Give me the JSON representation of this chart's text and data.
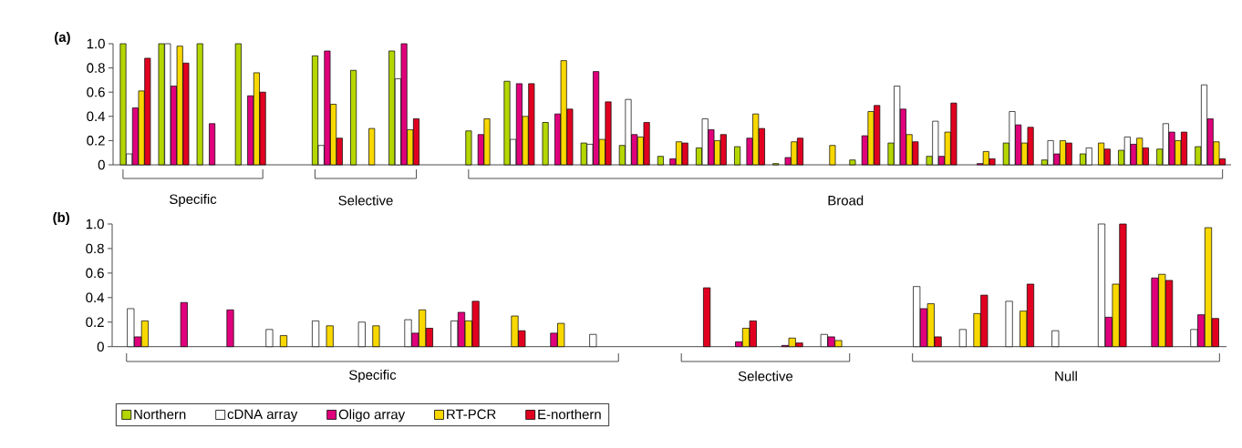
{
  "chart_data": [
    {
      "type": "bar",
      "title": "(a)",
      "legend": "bottom",
      "ylim": [
        0,
        1
      ],
      "yticks": [
        0,
        0.2,
        0.4,
        0.6,
        0.8,
        {
          "value": 1,
          "label": "1.0"
        }
      ],
      "annotations": [
        "Specific",
        "Selective",
        "Broad"
      ],
      "categories": [
        null,
        null,
        null,
        null,
        null,
        null,
        null,
        null,
        null,
        null,
        null,
        null,
        null,
        null,
        null,
        null,
        null,
        null,
        null,
        null,
        null,
        null,
        null,
        null,
        null,
        null,
        null,
        null,
        null
      ],
      "series": [
        {
          "name": "Northern",
          "color": "#b5d600",
          "values": [
            1.0,
            1.0,
            1.0,
            1.0,
            null,
            0.9,
            0.78,
            0.94,
            null,
            0.28,
            0.69,
            0.35,
            0.18,
            0.16,
            0.07,
            0.14,
            0.15,
            0.01,
            null,
            0.04,
            0.18,
            0.07,
            null,
            0.18,
            0.04,
            0.09,
            0.12,
            0.13,
            0.15
          ]
        },
        {
          "name": "cDNA array",
          "color": "#ffffff",
          "values": [
            0.09,
            1.0,
            null,
            null,
            null,
            0.16,
            null,
            0.71,
            null,
            null,
            0.21,
            null,
            0.17,
            0.54,
            null,
            0.38,
            null,
            null,
            null,
            null,
            0.65,
            0.36,
            null,
            0.44,
            0.2,
            0.14,
            0.23,
            0.34,
            0.66
          ]
        },
        {
          "name": "Oligo array",
          "color": "#e0007b",
          "values": [
            0.47,
            0.65,
            0.34,
            0.57,
            null,
            0.94,
            null,
            1.0,
            null,
            0.25,
            0.67,
            0.42,
            0.77,
            0.25,
            0.05,
            0.29,
            0.22,
            0.06,
            null,
            0.24,
            0.46,
            0.07,
            0.01,
            0.33,
            0.09,
            null,
            0.17,
            0.27,
            0.38
          ]
        },
        {
          "name": "RT-PCR",
          "color": "#f9d800",
          "values": [
            0.61,
            0.98,
            null,
            0.76,
            null,
            0.5,
            0.3,
            0.29,
            null,
            0.38,
            0.4,
            0.86,
            0.21,
            0.23,
            0.19,
            0.2,
            0.42,
            0.19,
            0.16,
            0.44,
            0.25,
            0.27,
            0.11,
            0.18,
            0.2,
            0.18,
            0.22,
            0.2,
            0.19
          ]
        },
        {
          "name": "E-northern",
          "color": "#e10020",
          "values": [
            0.88,
            0.84,
            null,
            0.6,
            null,
            0.22,
            null,
            0.38,
            null,
            null,
            0.67,
            0.46,
            0.52,
            0.35,
            0.18,
            0.25,
            0.3,
            0.22,
            null,
            0.49,
            0.19,
            0.51,
            0.05,
            0.31,
            0.18,
            0.13,
            0.14,
            0.27,
            0.05
          ]
        }
      ]
    },
    {
      "type": "bar",
      "title": "(b)",
      "ylim": [
        0,
        1
      ],
      "yticks": [
        0,
        0.2,
        0.4,
        0.6,
        0.8,
        {
          "value": 1,
          "label": "1.0"
        }
      ],
      "annotations": [
        "Specific",
        "Selective",
        "Null"
      ],
      "categories": [
        null,
        null,
        null,
        null,
        null,
        null,
        null,
        null,
        null,
        null,
        null,
        null,
        null,
        null,
        null,
        null,
        null,
        null,
        null,
        null,
        null,
        null,
        null,
        null
      ],
      "series": [
        {
          "color": "#ffffff",
          "values": [
            0.31,
            null,
            null,
            0.14,
            0.21,
            0.2,
            0.22,
            0.21,
            null,
            null,
            0.1,
            null,
            null,
            null,
            null,
            0.1,
            null,
            0.49,
            0.14,
            0.37,
            0.13,
            1.0,
            null,
            0.14
          ]
        },
        {
          "color": "#e0007b",
          "values": [
            0.08,
            0.36,
            0.3,
            null,
            null,
            null,
            0.11,
            0.28,
            null,
            0.11,
            null,
            null,
            null,
            0.04,
            0.01,
            0.08,
            null,
            0.31,
            null,
            null,
            null,
            0.24,
            0.56,
            0.26
          ]
        },
        {
          "color": "#f9d800",
          "values": [
            0.21,
            null,
            null,
            0.09,
            0.17,
            0.17,
            0.3,
            0.21,
            0.25,
            0.19,
            null,
            null,
            null,
            0.15,
            0.07,
            0.05,
            null,
            0.35,
            0.27,
            0.29,
            null,
            0.51,
            0.59,
            0.97
          ]
        },
        {
          "color": "#e10020",
          "values": [
            null,
            null,
            null,
            null,
            null,
            null,
            0.15,
            0.37,
            0.13,
            null,
            null,
            null,
            0.48,
            0.21,
            0.03,
            null,
            null,
            0.08,
            0.42,
            0.51,
            null,
            1.0,
            0.54,
            0.23
          ]
        }
      ]
    }
  ]
}
